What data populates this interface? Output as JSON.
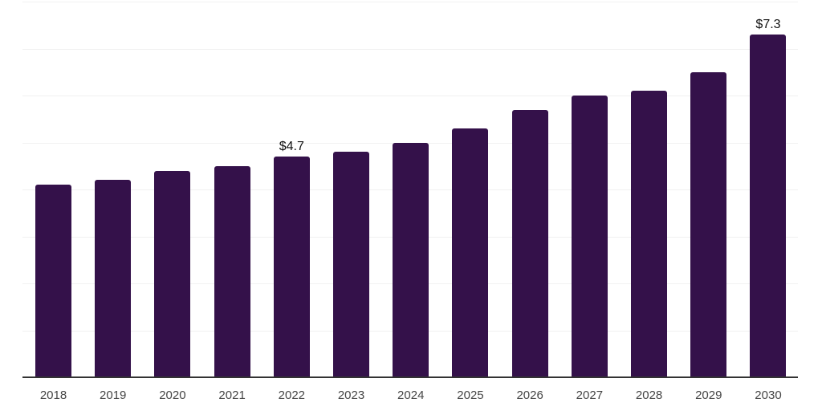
{
  "chart_data": {
    "type": "bar",
    "categories": [
      "2018",
      "2019",
      "2020",
      "2021",
      "2022",
      "2023",
      "2024",
      "2025",
      "2026",
      "2027",
      "2028",
      "2029",
      "2030"
    ],
    "values": [
      4.1,
      4.2,
      4.4,
      4.5,
      4.7,
      4.8,
      5.0,
      5.3,
      5.7,
      6.0,
      6.1,
      6.5,
      7.3
    ],
    "bar_labels": {
      "2022": "$4.7",
      "2030": "$7.3"
    },
    "title": "",
    "xlabel": "",
    "ylabel": "",
    "ylim": [
      0,
      8
    ],
    "gridline_values": [
      1,
      2,
      3,
      4,
      5,
      6,
      7,
      8
    ],
    "grid": "horizontal",
    "legend_position": "none",
    "colors": {
      "bar": "#34114a",
      "gridline": "#f1f1f1",
      "axis": "#333333",
      "tick_label": "#454545",
      "bar_label": "#111111",
      "background": "#ffffff"
    }
  }
}
